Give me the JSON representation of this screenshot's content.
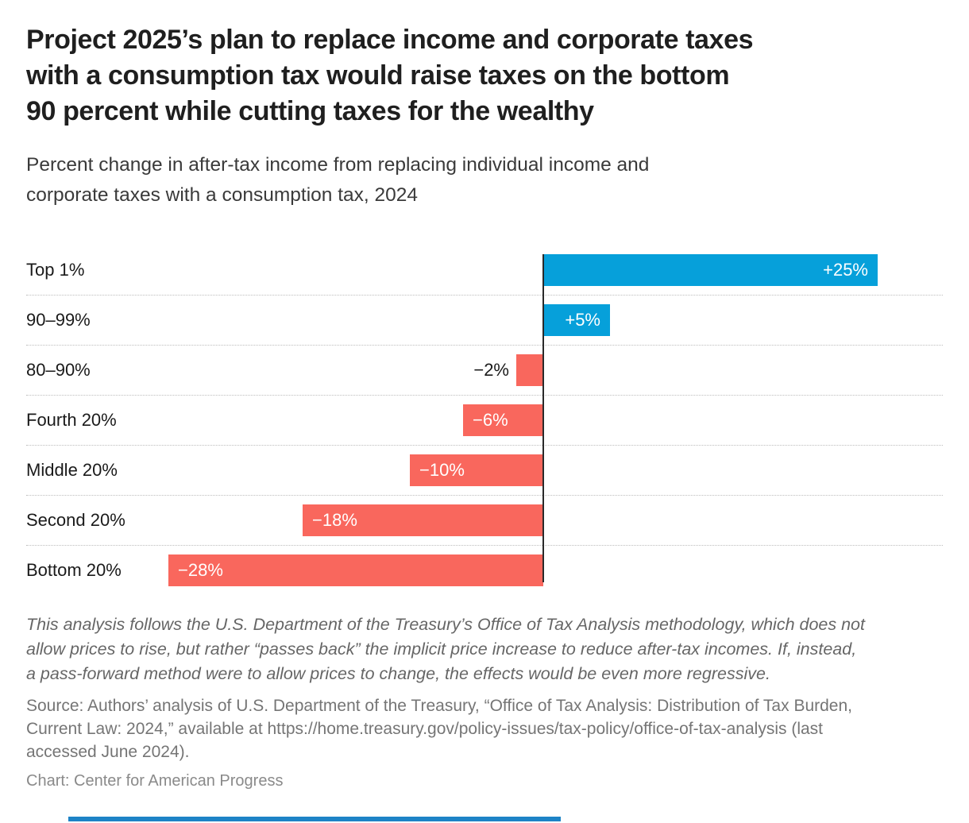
{
  "header": {
    "title": "Project 2025’s plan to replace income and corporate taxes with a consumption tax would raise taxes on the bottom 90 percent while cutting taxes for the wealthy",
    "title_lines": [
      "Project 2025’s plan to replace income and corporate taxes",
      "with a consumption tax would raise taxes on the bottom",
      "90 percent while cutting taxes for the wealthy"
    ],
    "subtitle_lines": [
      "Percent change in after-tax income from replacing individual income and",
      "corporate taxes with a consumption tax, 2024"
    ]
  },
  "chart_data": {
    "type": "bar",
    "orientation": "horizontal",
    "title": "Project 2025’s plan to replace income and corporate taxes with a consumption tax would raise taxes on the bottom 90 percent while cutting taxes for the wealthy",
    "subtitle": "Percent change in after-tax income from replacing individual income and corporate taxes with a consumption tax, 2024",
    "categories": [
      "Top 1%",
      "90–99%",
      "80–90%",
      "Fourth 20%",
      "Middle 20%",
      "Second 20%",
      "Bottom 20%"
    ],
    "values": [
      25,
      5,
      -2,
      -6,
      -10,
      -18,
      -28
    ],
    "value_labels": [
      "+25%",
      "+5%",
      "−2%",
      "−6%",
      "−10%",
      "−18%",
      "−28%"
    ],
    "unit": "percent change in after-tax income",
    "baseline": 0,
    "xlim": [
      -39,
      30
    ],
    "grid": "dotted horizontal separators between rows, solid vertical zero baseline",
    "legend": "none",
    "colors": {
      "positive": "#06a0da",
      "negative": "#f9675d",
      "baseline": "#2a2a2a",
      "outside_label_text": "#1a1a1a"
    }
  },
  "notes": {
    "footnote_lines": [
      "This analysis follows the U.S. Department of the Treasury’s Office of Tax Analysis methodology, which does not",
      "allow prices to rise, but rather “passes back” the implicit price increase to reduce after-tax incomes. If, instead,",
      "a pass-forward method were to allow prices to change, the effects would be even more regressive."
    ],
    "source_lines": [
      "Source: Authors’ analysis of U.S. Department of the Treasury, “Office of Tax Analysis: Distribution of Tax Burden,",
      "Current Law: 2024,” available at https://home.treasury.gov/policy-issues/tax-policy/office-of-tax-analysis (last",
      "accessed June 2024)."
    ],
    "credit": "Chart: Center for American Progress"
  },
  "footer": {
    "accent_bar_color": "#1d83c6"
  }
}
